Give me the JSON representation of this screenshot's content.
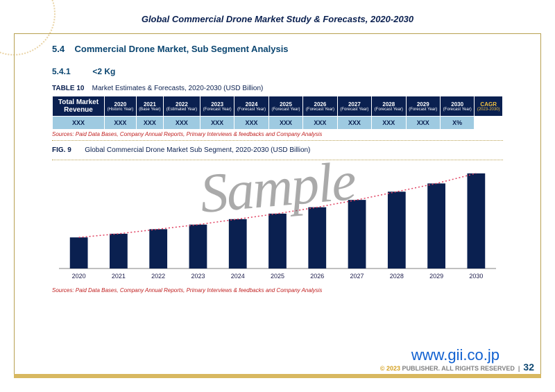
{
  "header": {
    "title": "Global Commercial Drone Market Study & Forecasts, 2020-2030"
  },
  "section": {
    "number": "5.4",
    "title": "Commercial Drone Market, Sub Segment Analysis"
  },
  "subsection": {
    "number": "5.4.1",
    "title": "<2 Kg"
  },
  "table": {
    "label": "TABLE 10",
    "caption": "Market Estimates & Forecasts, 2020-2030 (USD Billion)",
    "row_header_top": "Total Market",
    "row_header_bottom": "Revenue",
    "columns": [
      {
        "year": "2020",
        "sub": "(Historic Year)"
      },
      {
        "year": "2021",
        "sub": "(Base Year)"
      },
      {
        "year": "2022",
        "sub": "(Estimated Year)"
      },
      {
        "year": "2023",
        "sub": "(Forecast Year)"
      },
      {
        "year": "2024",
        "sub": "(Forecast Year)"
      },
      {
        "year": "2025",
        "sub": "(Forecast Year)"
      },
      {
        "year": "2026",
        "sub": "(Forecast Year)"
      },
      {
        "year": "2027",
        "sub": "(Forecast Year)"
      },
      {
        "year": "2028",
        "sub": "(Forecast Year)"
      },
      {
        "year": "2029",
        "sub": "(Forecast Year)"
      },
      {
        "year": "2030",
        "sub": "(Forecast Year)"
      }
    ],
    "cagr_header": "CAGR",
    "cagr_sub": "(2023-2030)",
    "values": [
      "XXX",
      "XXX",
      "XXX",
      "XXX",
      "XXX",
      "XXX",
      "XXX",
      "XXX",
      "XXX",
      "XXX",
      "XXX"
    ],
    "cagr_value": "X%",
    "header_bg": "#0a2050",
    "cell_bg": "#9ecae1"
  },
  "sources": "Sources: Paid Data Bases, Company Annual Reports, Primary Interviews & feedbacks and Company Analysis",
  "figure": {
    "label": "FIG. 9",
    "caption": "Global Commercial Drone Market Sub Segment, 2020-2030 (USD Billion)"
  },
  "chart": {
    "type": "bar",
    "categories": [
      "2020",
      "2021",
      "2022",
      "2023",
      "2024",
      "2025",
      "2026",
      "2027",
      "2028",
      "2029",
      "2030"
    ],
    "values": [
      34,
      38,
      43,
      48,
      54,
      60,
      67,
      75,
      84,
      93,
      104
    ],
    "ylim": [
      0,
      110
    ],
    "bar_color": "#0a2050",
    "trend_color": "#e04060",
    "axis_color": "#808080",
    "label_fontsize": 9,
    "label_color": "#1a1a4a",
    "bar_width_ratio": 0.45
  },
  "watermark": "Sample",
  "footer": {
    "url": "www.gii.co.jp",
    "copyright_symbol": "© 2023",
    "copyright_text": "PUBLISHER. ALL RIGHTS RESERVED",
    "page_number": "32"
  }
}
